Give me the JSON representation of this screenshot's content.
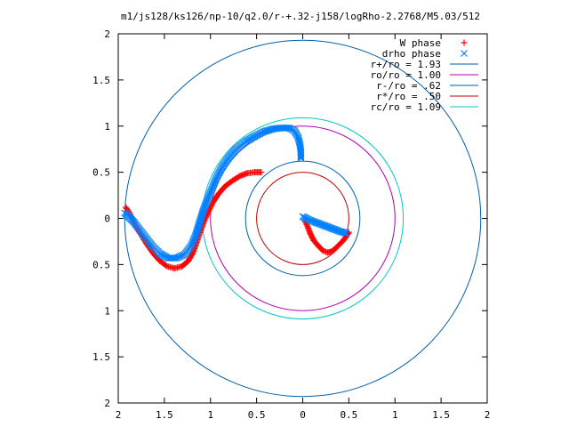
{
  "chart_data": {
    "type": "scatter",
    "title": "m1/js128/ks126/np-10/q2.0/r-+.32-j158/logRho-2.2768/M5.03/512",
    "xlim": [
      -2,
      2
    ],
    "ylim": [
      -2,
      2
    ],
    "x_ticks": [
      "2",
      "1.5",
      "1",
      "0.5",
      "0",
      "0.5",
      "1",
      "1.5",
      "2"
    ],
    "y_ticks": [
      "2",
      "1.5",
      "1",
      "0.5",
      "0",
      "0.5",
      "1",
      "1.5",
      "2"
    ],
    "x_tick_values": [
      -2,
      -1.5,
      -1,
      -0.5,
      0,
      0.5,
      1,
      1.5,
      2
    ],
    "y_tick_values": [
      2,
      1.5,
      1,
      0.5,
      0,
      -0.5,
      -1,
      -1.5,
      -2
    ],
    "grid": false,
    "legend_position": "top-right",
    "series": [
      {
        "name": "W phase",
        "kind": "points",
        "marker": "plus",
        "color": "#ff0000",
        "points": [
          [
            0.02,
            -0.02
          ],
          [
            0.05,
            -0.08
          ],
          [
            0.08,
            -0.16
          ],
          [
            0.12,
            -0.24
          ],
          [
            0.17,
            -0.3
          ],
          [
            0.22,
            -0.35
          ],
          [
            0.27,
            -0.37
          ],
          [
            0.31,
            -0.36
          ],
          [
            0.35,
            -0.33
          ],
          [
            0.39,
            -0.29
          ],
          [
            0.43,
            -0.25
          ],
          [
            0.47,
            -0.2
          ],
          [
            0.5,
            -0.15
          ],
          [
            -0.45,
            0.5
          ],
          [
            -0.52,
            0.5
          ],
          [
            -0.6,
            0.49
          ],
          [
            -0.68,
            0.46
          ],
          [
            -0.76,
            0.41
          ],
          [
            -0.84,
            0.35
          ],
          [
            -0.91,
            0.27
          ],
          [
            -0.97,
            0.18
          ],
          [
            -1.02,
            0.08
          ],
          [
            -1.07,
            -0.03
          ],
          [
            -1.11,
            -0.14
          ],
          [
            -1.15,
            -0.26
          ],
          [
            -1.19,
            -0.37
          ],
          [
            -1.24,
            -0.46
          ],
          [
            -1.31,
            -0.52
          ],
          [
            -1.39,
            -0.54
          ],
          [
            -1.47,
            -0.52
          ],
          [
            -1.55,
            -0.46
          ],
          [
            -1.62,
            -0.38
          ],
          [
            -1.69,
            -0.28
          ],
          [
            -1.75,
            -0.18
          ],
          [
            -1.81,
            -0.08
          ],
          [
            -1.86,
            0.02
          ],
          [
            -1.89,
            0.08
          ],
          [
            -1.92,
            0.12
          ]
        ]
      },
      {
        "name": "drho phase",
        "kind": "points",
        "marker": "cross",
        "color": "#0080ff",
        "points": [
          [
            0.0,
            0.02
          ],
          [
            0.08,
            -0.02
          ],
          [
            0.16,
            -0.05
          ],
          [
            0.24,
            -0.08
          ],
          [
            0.32,
            -0.11
          ],
          [
            0.4,
            -0.14
          ],
          [
            0.47,
            -0.16
          ],
          [
            -0.02,
            0.65
          ],
          [
            -0.02,
            0.72
          ],
          [
            -0.03,
            0.8
          ],
          [
            -0.05,
            0.88
          ],
          [
            -0.09,
            0.95
          ],
          [
            -0.15,
            0.98
          ],
          [
            -0.23,
            0.98
          ],
          [
            -0.32,
            0.97
          ],
          [
            -0.42,
            0.94
          ],
          [
            -0.52,
            0.89
          ],
          [
            -0.62,
            0.83
          ],
          [
            -0.72,
            0.75
          ],
          [
            -0.8,
            0.66
          ],
          [
            -0.87,
            0.56
          ],
          [
            -0.93,
            0.45
          ],
          [
            -0.98,
            0.33
          ],
          [
            -1.03,
            0.21
          ],
          [
            -1.08,
            0.08
          ],
          [
            -1.12,
            -0.05
          ],
          [
            -1.16,
            -0.18
          ],
          [
            -1.21,
            -0.3
          ],
          [
            -1.28,
            -0.39
          ],
          [
            -1.37,
            -0.43
          ],
          [
            -1.46,
            -0.43
          ],
          [
            -1.55,
            -0.38
          ],
          [
            -1.63,
            -0.3
          ],
          [
            -1.7,
            -0.21
          ],
          [
            -1.77,
            -0.12
          ],
          [
            -1.83,
            -0.04
          ],
          [
            -1.89,
            0.02
          ],
          [
            -1.93,
            0.06
          ]
        ]
      },
      {
        "name": "r+/ro = 1.93",
        "kind": "circle",
        "r": 1.93,
        "color": "#0060ad"
      },
      {
        "name": "ro/ro = 1.00",
        "kind": "circle",
        "r": 1.0,
        "color": "#b000b0"
      },
      {
        "name": "r-/ro = .62",
        "kind": "circle",
        "r": 0.62,
        "color": "#0060ad"
      },
      {
        "name": "r*/ro = .50",
        "kind": "circle",
        "r": 0.5,
        "color": "#c00000"
      },
      {
        "name": "rc/ro = 1.09",
        "kind": "circle",
        "r": 1.09,
        "color": "#00c8c8"
      }
    ]
  }
}
